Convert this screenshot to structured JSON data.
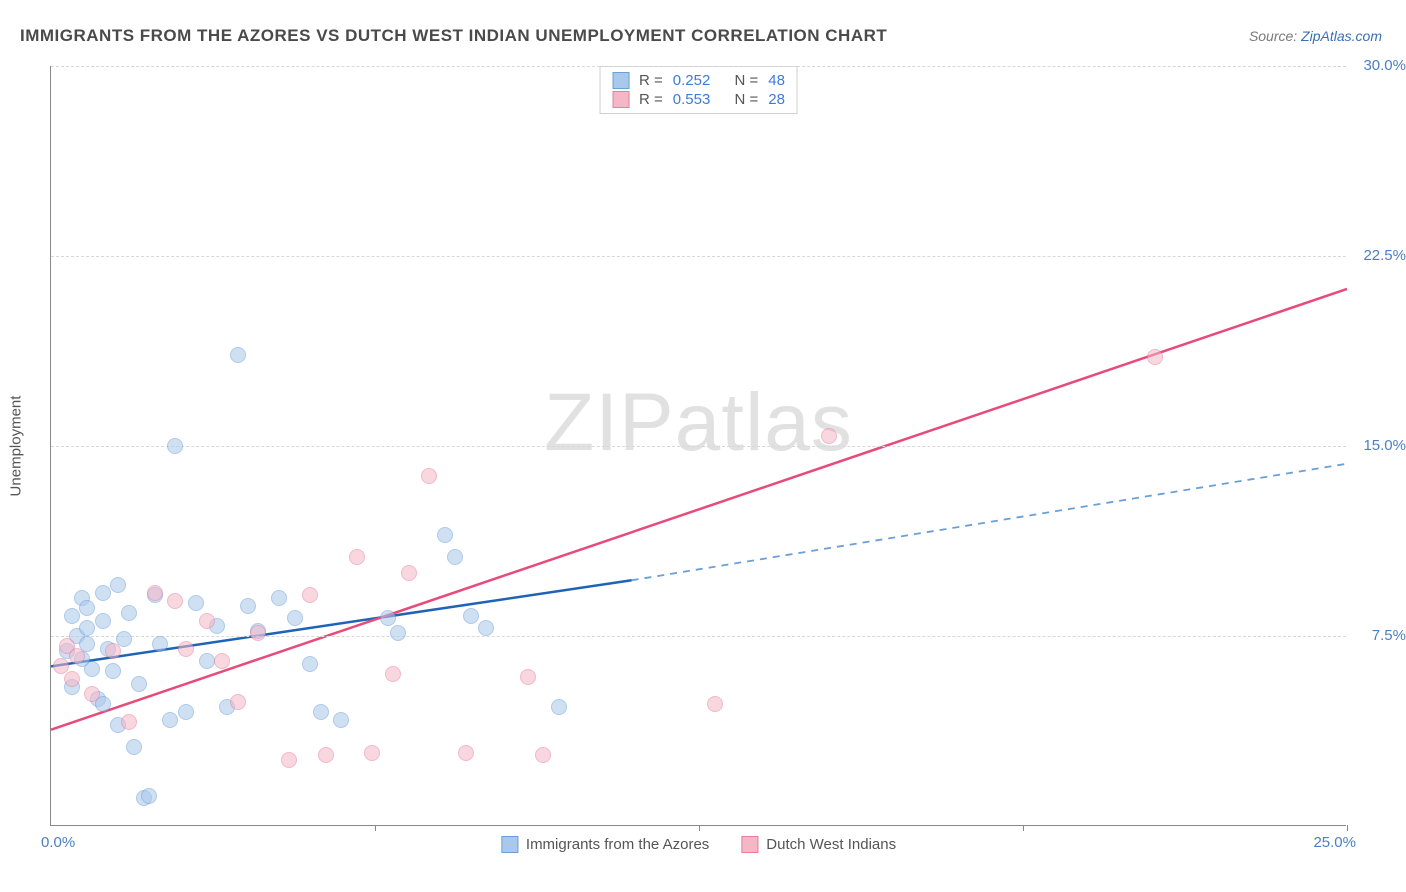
{
  "title": "IMMIGRANTS FROM THE AZORES VS DUTCH WEST INDIAN UNEMPLOYMENT CORRELATION CHART",
  "source_label": "Source:",
  "source_name": "ZipAtlas.com",
  "ylabel": "Unemployment",
  "watermark_bold": "ZIP",
  "watermark_thin": "atlas",
  "chart": {
    "type": "scatter-correlation",
    "x_range": [
      0,
      25
    ],
    "y_range": [
      0,
      30
    ],
    "x_ticks": [
      {
        "v": 0,
        "label": "0.0%"
      },
      {
        "v": 25,
        "label": "25.0%"
      }
    ],
    "y_ticks": [
      {
        "v": 7.5,
        "label": "7.5%"
      },
      {
        "v": 15,
        "label": "15.0%"
      },
      {
        "v": 22.5,
        "label": "22.5%"
      },
      {
        "v": 30,
        "label": "30.0%"
      }
    ],
    "v_axis_marks": [
      6.25,
      12.5,
      18.75,
      25
    ],
    "grid_dash_color": "#d8d8d8",
    "background_color": "#ffffff",
    "tick_label_color": "#4a7fc5",
    "tick_fontsize": 15
  },
  "series": [
    {
      "id": "azores",
      "label": "Immigrants from the Azores",
      "fill": "#aac8eb",
      "stroke": "#6a9fd8",
      "fill_opacity": 0.55,
      "marker_radius": 8,
      "R_label": "R =",
      "R": "0.252",
      "N_label": "N =",
      "N": "48",
      "trend": {
        "x0": 0,
        "y0": 6.3,
        "x1": 11.2,
        "y1": 9.7,
        "x2": 25,
        "y2": 14.3,
        "solid_color": "#1f63b8",
        "dash_color": "#6a9fd8",
        "width": 2.5
      },
      "points": [
        [
          0.3,
          6.9
        ],
        [
          0.4,
          8.3
        ],
        [
          0.5,
          7.5
        ],
        [
          0.4,
          5.5
        ],
        [
          0.6,
          9.0
        ],
        [
          0.7,
          7.8
        ],
        [
          0.7,
          8.6
        ],
        [
          0.8,
          6.2
        ],
        [
          0.9,
          5.0
        ],
        [
          1.0,
          8.1
        ],
        [
          1.0,
          9.2
        ],
        [
          1.1,
          7.0
        ],
        [
          1.2,
          6.1
        ],
        [
          1.3,
          9.5
        ],
        [
          1.3,
          4.0
        ],
        [
          1.4,
          7.4
        ],
        [
          1.5,
          8.4
        ],
        [
          1.6,
          3.1
        ],
        [
          1.7,
          5.6
        ],
        [
          1.8,
          1.1
        ],
        [
          1.9,
          1.2
        ],
        [
          2.0,
          9.1
        ],
        [
          2.1,
          7.2
        ],
        [
          2.3,
          4.2
        ],
        [
          2.4,
          15.0
        ],
        [
          2.6,
          4.5
        ],
        [
          2.8,
          8.8
        ],
        [
          3.0,
          6.5
        ],
        [
          3.2,
          7.9
        ],
        [
          3.4,
          4.7
        ],
        [
          3.6,
          18.6
        ],
        [
          3.8,
          8.7
        ],
        [
          4.0,
          7.7
        ],
        [
          4.4,
          9.0
        ],
        [
          4.7,
          8.2
        ],
        [
          5.0,
          6.4
        ],
        [
          5.2,
          4.5
        ],
        [
          5.6,
          4.2
        ],
        [
          6.5,
          8.2
        ],
        [
          6.7,
          7.6
        ],
        [
          7.6,
          11.5
        ],
        [
          7.8,
          10.6
        ],
        [
          8.1,
          8.3
        ],
        [
          8.4,
          7.8
        ],
        [
          9.8,
          4.7
        ],
        [
          1.0,
          4.8
        ],
        [
          0.6,
          6.6
        ],
        [
          0.7,
          7.2
        ]
      ]
    },
    {
      "id": "dutch",
      "label": "Dutch West Indians",
      "fill": "#f4b7c6",
      "stroke": "#e87ea0",
      "fill_opacity": 0.55,
      "marker_radius": 8,
      "R_label": "R =",
      "R": "0.553",
      "N_label": "N =",
      "N": "28",
      "trend": {
        "x0": 0,
        "y0": 3.8,
        "x1": 25,
        "y1": 21.2,
        "solid_color": "#e84a7a",
        "width": 2.5
      },
      "points": [
        [
          0.2,
          6.3
        ],
        [
          0.3,
          7.1
        ],
        [
          0.4,
          5.8
        ],
        [
          0.5,
          6.7
        ],
        [
          0.8,
          5.2
        ],
        [
          1.2,
          6.9
        ],
        [
          1.5,
          4.1
        ],
        [
          2.0,
          9.2
        ],
        [
          2.4,
          8.9
        ],
        [
          2.6,
          7.0
        ],
        [
          3.0,
          8.1
        ],
        [
          3.3,
          6.5
        ],
        [
          3.6,
          4.9
        ],
        [
          4.0,
          7.6
        ],
        [
          4.6,
          2.6
        ],
        [
          5.0,
          9.1
        ],
        [
          5.3,
          2.8
        ],
        [
          5.9,
          10.6
        ],
        [
          6.2,
          2.9
        ],
        [
          6.6,
          6.0
        ],
        [
          6.9,
          10.0
        ],
        [
          7.3,
          13.8
        ],
        [
          8.0,
          2.9
        ],
        [
          9.2,
          5.9
        ],
        [
          9.5,
          2.8
        ],
        [
          12.8,
          4.8
        ],
        [
          15.0,
          15.4
        ],
        [
          21.3,
          18.5
        ]
      ]
    }
  ]
}
